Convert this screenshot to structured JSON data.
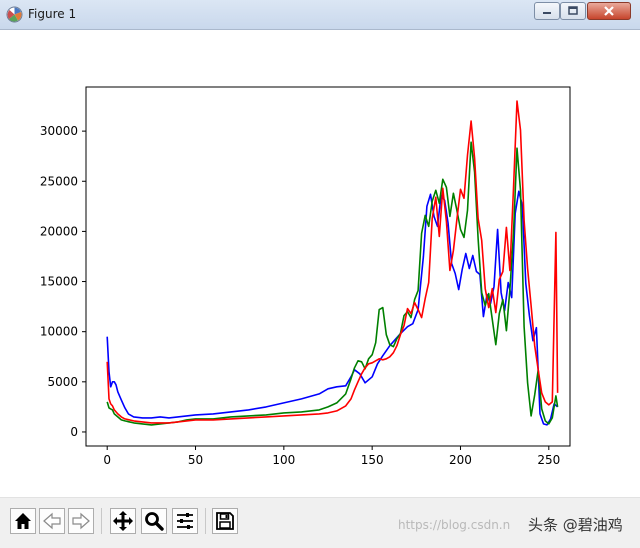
{
  "window": {
    "title": "Figure 1",
    "app_icon": "matplotlib-figure-icon",
    "controls": [
      {
        "name": "minimize",
        "icon": "minimize-icon"
      },
      {
        "name": "maximize",
        "icon": "maximize-icon"
      },
      {
        "name": "close",
        "icon": "close-icon"
      }
    ]
  },
  "toolbar": {
    "buttons": [
      {
        "name": "home",
        "icon": "home-icon"
      },
      {
        "name": "back",
        "icon": "arrow-left-icon"
      },
      {
        "name": "forward",
        "icon": "arrow-right-icon"
      },
      {
        "name": "pan",
        "icon": "move-icon"
      },
      {
        "name": "zoom",
        "icon": "magnifier-icon"
      },
      {
        "name": "configure-subplots",
        "icon": "sliders-icon"
      },
      {
        "name": "save",
        "icon": "save-icon"
      }
    ],
    "watermark": "https://blog.csdn.n",
    "brand": "头条 @碧油鸡"
  },
  "chart_data": {
    "type": "line",
    "title": "",
    "xlabel": "",
    "ylabel": "",
    "xlim": [
      -12,
      262
    ],
    "ylim": [
      -1400,
      34400
    ],
    "xticks": [
      0,
      50,
      100,
      150,
      200,
      250
    ],
    "yticks": [
      0,
      5000,
      10000,
      15000,
      20000,
      25000,
      30000
    ],
    "grid": false,
    "legend": "none",
    "series": [
      {
        "color": "#0000ff",
        "points": [
          [
            0,
            9500
          ],
          [
            1,
            6000
          ],
          [
            2,
            4500
          ],
          [
            3,
            5000
          ],
          [
            4,
            5000
          ],
          [
            5,
            4700
          ],
          [
            6,
            4000
          ],
          [
            8,
            3200
          ],
          [
            10,
            2400
          ],
          [
            12,
            1800
          ],
          [
            15,
            1500
          ],
          [
            20,
            1400
          ],
          [
            25,
            1400
          ],
          [
            30,
            1500
          ],
          [
            35,
            1400
          ],
          [
            40,
            1500
          ],
          [
            45,
            1600
          ],
          [
            50,
            1700
          ],
          [
            60,
            1800
          ],
          [
            70,
            2000
          ],
          [
            80,
            2200
          ],
          [
            90,
            2500
          ],
          [
            100,
            2900
          ],
          [
            110,
            3300
          ],
          [
            120,
            3800
          ],
          [
            125,
            4300
          ],
          [
            130,
            4500
          ],
          [
            135,
            4600
          ],
          [
            138,
            5500
          ],
          [
            140,
            6200
          ],
          [
            143,
            5800
          ],
          [
            146,
            4900
          ],
          [
            150,
            5500
          ],
          [
            153,
            6800
          ],
          [
            156,
            7600
          ],
          [
            160,
            8600
          ],
          [
            163,
            9200
          ],
          [
            166,
            9800
          ],
          [
            170,
            10500
          ],
          [
            173,
            10800
          ],
          [
            176,
            12200
          ],
          [
            179,
            17500
          ],
          [
            181,
            22500
          ],
          [
            183,
            23700
          ],
          [
            185,
            21500
          ],
          [
            187,
            20500
          ],
          [
            189,
            23600
          ],
          [
            191,
            23100
          ],
          [
            193,
            20800
          ],
          [
            195,
            16800
          ],
          [
            197,
            15800
          ],
          [
            199,
            14200
          ],
          [
            201,
            16200
          ],
          [
            203,
            17800
          ],
          [
            205,
            16300
          ],
          [
            207,
            17600
          ],
          [
            209,
            16000
          ],
          [
            211,
            15700
          ],
          [
            213,
            11500
          ],
          [
            215,
            13700
          ],
          [
            217,
            12800
          ],
          [
            219,
            14500
          ],
          [
            221,
            20200
          ],
          [
            223,
            13900
          ],
          [
            225,
            12100
          ],
          [
            227,
            14900
          ],
          [
            229,
            13400
          ],
          [
            231,
            21800
          ],
          [
            233,
            24000
          ],
          [
            235,
            22600
          ],
          [
            237,
            14800
          ],
          [
            239,
            11600
          ],
          [
            241,
            9100
          ],
          [
            243,
            10400
          ],
          [
            245,
            1800
          ],
          [
            247,
            800
          ],
          [
            249,
            700
          ],
          [
            251,
            1300
          ],
          [
            253,
            2800
          ],
          [
            255,
            2500
          ]
        ]
      },
      {
        "color": "#008000",
        "points": [
          [
            0,
            3000
          ],
          [
            1,
            2400
          ],
          [
            2,
            2300
          ],
          [
            3,
            2200
          ],
          [
            4,
            1800
          ],
          [
            6,
            1500
          ],
          [
            8,
            1200
          ],
          [
            10,
            1100
          ],
          [
            15,
            900
          ],
          [
            20,
            800
          ],
          [
            25,
            700
          ],
          [
            30,
            800
          ],
          [
            35,
            900
          ],
          [
            40,
            1000
          ],
          [
            45,
            1200
          ],
          [
            50,
            1300
          ],
          [
            60,
            1300
          ],
          [
            70,
            1500
          ],
          [
            80,
            1600
          ],
          [
            90,
            1700
          ],
          [
            100,
            1900
          ],
          [
            110,
            2000
          ],
          [
            120,
            2200
          ],
          [
            125,
            2500
          ],
          [
            130,
            2900
          ],
          [
            135,
            3800
          ],
          [
            138,
            5300
          ],
          [
            140,
            6400
          ],
          [
            142,
            7100
          ],
          [
            144,
            7000
          ],
          [
            146,
            6300
          ],
          [
            148,
            7300
          ],
          [
            150,
            7700
          ],
          [
            152,
            8900
          ],
          [
            154,
            12200
          ],
          [
            156,
            12400
          ],
          [
            158,
            9700
          ],
          [
            160,
            8700
          ],
          [
            162,
            8500
          ],
          [
            164,
            9300
          ],
          [
            166,
            9800
          ],
          [
            168,
            11600
          ],
          [
            170,
            12000
          ],
          [
            172,
            11400
          ],
          [
            174,
            13200
          ],
          [
            176,
            14100
          ],
          [
            178,
            19800
          ],
          [
            180,
            21600
          ],
          [
            182,
            20500
          ],
          [
            184,
            23000
          ],
          [
            186,
            24100
          ],
          [
            188,
            22800
          ],
          [
            190,
            25200
          ],
          [
            192,
            24400
          ],
          [
            194,
            21500
          ],
          [
            196,
            23800
          ],
          [
            198,
            22100
          ],
          [
            200,
            20200
          ],
          [
            202,
            19400
          ],
          [
            204,
            22100
          ],
          [
            206,
            28900
          ],
          [
            208,
            25900
          ],
          [
            210,
            19300
          ],
          [
            212,
            13900
          ],
          [
            214,
            12600
          ],
          [
            216,
            13800
          ],
          [
            218,
            11200
          ],
          [
            220,
            8700
          ],
          [
            222,
            11800
          ],
          [
            224,
            13200
          ],
          [
            226,
            10100
          ],
          [
            228,
            14200
          ],
          [
            230,
            19800
          ],
          [
            232,
            28300
          ],
          [
            234,
            24100
          ],
          [
            236,
            10500
          ],
          [
            238,
            4900
          ],
          [
            240,
            1600
          ],
          [
            242,
            3700
          ],
          [
            244,
            6200
          ],
          [
            246,
            2300
          ],
          [
            248,
            1100
          ],
          [
            250,
            800
          ],
          [
            252,
            1400
          ],
          [
            254,
            3600
          ],
          [
            255,
            2500
          ]
        ]
      },
      {
        "color": "#ff0000",
        "points": [
          [
            0,
            7000
          ],
          [
            1,
            3300
          ],
          [
            2,
            2800
          ],
          [
            3,
            2600
          ],
          [
            4,
            2200
          ],
          [
            6,
            1800
          ],
          [
            8,
            1500
          ],
          [
            10,
            1300
          ],
          [
            15,
            1100
          ],
          [
            20,
            1000
          ],
          [
            25,
            900
          ],
          [
            30,
            900
          ],
          [
            35,
            900
          ],
          [
            40,
            1000
          ],
          [
            45,
            1100
          ],
          [
            50,
            1200
          ],
          [
            60,
            1200
          ],
          [
            70,
            1300
          ],
          [
            80,
            1400
          ],
          [
            90,
            1500
          ],
          [
            100,
            1600
          ],
          [
            110,
            1700
          ],
          [
            120,
            1800
          ],
          [
            125,
            1900
          ],
          [
            130,
            2100
          ],
          [
            135,
            2600
          ],
          [
            138,
            3300
          ],
          [
            140,
            4200
          ],
          [
            142,
            5000
          ],
          [
            144,
            5800
          ],
          [
            146,
            6400
          ],
          [
            148,
            6800
          ],
          [
            150,
            6900
          ],
          [
            152,
            7100
          ],
          [
            154,
            7300
          ],
          [
            156,
            7200
          ],
          [
            158,
            7300
          ],
          [
            160,
            7500
          ],
          [
            162,
            7900
          ],
          [
            164,
            8600
          ],
          [
            166,
            9700
          ],
          [
            168,
            10600
          ],
          [
            170,
            12300
          ],
          [
            172,
            11800
          ],
          [
            174,
            12900
          ],
          [
            176,
            12200
          ],
          [
            178,
            11400
          ],
          [
            180,
            13300
          ],
          [
            182,
            14900
          ],
          [
            184,
            21300
          ],
          [
            186,
            23400
          ],
          [
            188,
            19500
          ],
          [
            190,
            24300
          ],
          [
            192,
            21000
          ],
          [
            194,
            16100
          ],
          [
            196,
            18100
          ],
          [
            198,
            21200
          ],
          [
            200,
            24200
          ],
          [
            202,
            23300
          ],
          [
            204,
            27600
          ],
          [
            206,
            31000
          ],
          [
            208,
            27300
          ],
          [
            210,
            21300
          ],
          [
            212,
            19100
          ],
          [
            214,
            14300
          ],
          [
            216,
            12400
          ],
          [
            218,
            14300
          ],
          [
            220,
            11900
          ],
          [
            222,
            15200
          ],
          [
            224,
            16000
          ],
          [
            226,
            20400
          ],
          [
            228,
            16100
          ],
          [
            230,
            24300
          ],
          [
            232,
            33000
          ],
          [
            234,
            30100
          ],
          [
            236,
            21100
          ],
          [
            238,
            16300
          ],
          [
            240,
            12600
          ],
          [
            242,
            8600
          ],
          [
            244,
            6200
          ],
          [
            246,
            3900
          ],
          [
            248,
            3000
          ],
          [
            250,
            2700
          ],
          [
            252,
            3000
          ],
          [
            254,
            19900
          ],
          [
            255,
            3900
          ]
        ]
      }
    ]
  }
}
